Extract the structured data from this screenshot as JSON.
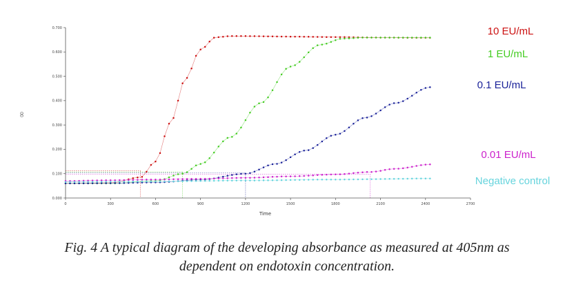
{
  "chart_data": {
    "type": "scatter",
    "title": "",
    "xlabel": "Time",
    "ylabel": "",
    "side_glyph": "∞",
    "xlim": [
      0,
      2700
    ],
    "ylim": [
      0,
      0.7
    ],
    "x_ticks": [
      0,
      300,
      600,
      900,
      1200,
      1500,
      1800,
      2100,
      2400,
      2700
    ],
    "x_tick_labels": [
      "0",
      "300",
      "600",
      "900",
      "1200",
      "1500",
      "1800",
      "2100",
      "2400",
      "2700"
    ],
    "y_ticks": [
      0,
      0.1,
      0.2,
      0.3,
      0.4,
      0.5,
      0.6,
      0.7
    ],
    "y_tick_labels": [
      "0.000",
      "0.100",
      "0.200",
      "0.300",
      "0.400",
      "0.500",
      "0.600",
      "0.700"
    ],
    "grid": false,
    "legend_position": "right",
    "marker_interval_s": 30,
    "series": [
      {
        "name": "10 EU/mL",
        "color": "#cc1111",
        "onset_time": 500,
        "threshold": 0.105,
        "x": [
          0,
          300,
          500,
          600,
          700,
          800,
          900,
          1000,
          1100,
          1200,
          1500,
          1800,
          2100,
          2430
        ],
        "y": [
          0.06,
          0.062,
          0.085,
          0.15,
          0.31,
          0.49,
          0.61,
          0.66,
          0.665,
          0.665,
          0.663,
          0.661,
          0.659,
          0.658
        ]
      },
      {
        "name": "1 EU/mL",
        "color": "#44cc22",
        "onset_time": 780,
        "threshold": 0.105,
        "x": [
          0,
          300,
          600,
          780,
          900,
          1100,
          1300,
          1500,
          1700,
          1850,
          2000,
          2100,
          2430
        ],
        "y": [
          0.06,
          0.06,
          0.07,
          0.1,
          0.14,
          0.25,
          0.39,
          0.54,
          0.63,
          0.655,
          0.659,
          0.659,
          0.659
        ]
      },
      {
        "name": "0.1 EU/mL",
        "color": "#1a2299",
        "onset_time": 1200,
        "threshold": 0.105,
        "x": [
          0,
          300,
          600,
          900,
          1200,
          1400,
          1600,
          1800,
          2000,
          2200,
          2430
        ],
        "y": [
          0.06,
          0.061,
          0.064,
          0.075,
          0.1,
          0.14,
          0.195,
          0.26,
          0.33,
          0.39,
          0.455
        ]
      },
      {
        "name": "0.01 EU/mL",
        "color": "#cc22cc",
        "onset_time": 2030,
        "threshold": 0.105,
        "x": [
          0,
          300,
          600,
          900,
          1200,
          1500,
          1800,
          2030,
          2200,
          2430
        ],
        "y": [
          0.07,
          0.073,
          0.076,
          0.079,
          0.083,
          0.089,
          0.097,
          0.107,
          0.12,
          0.138
        ]
      },
      {
        "name": "Negative control",
        "color": "#66d4dd",
        "onset_time": null,
        "threshold": null,
        "x": [
          0,
          600,
          1200,
          1800,
          2430
        ],
        "y": [
          0.066,
          0.068,
          0.072,
          0.076,
          0.08
        ]
      }
    ]
  },
  "caption": {
    "line1": "Fig. 4 A typical diagram of the developing absorbance as measured at 405nm as",
    "line2": "dependent on endotoxin concentration."
  }
}
